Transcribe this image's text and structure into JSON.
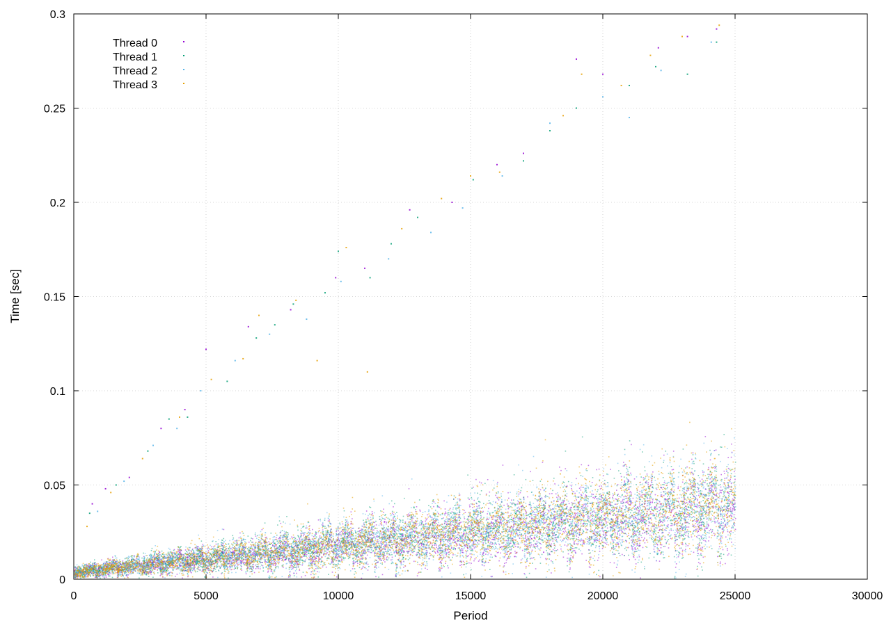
{
  "chart_data": {
    "type": "scatter",
    "xlabel": "Period",
    "ylabel": "Time [sec]",
    "xlim": [
      0,
      30000
    ],
    "ylim": [
      0,
      0.3
    ],
    "xticks": [
      {
        "value": 0,
        "label": "0"
      },
      {
        "value": 5000,
        "label": "5000"
      },
      {
        "value": 10000,
        "label": "10000"
      },
      {
        "value": 15000,
        "label": "15000"
      },
      {
        "value": 20000,
        "label": "20000"
      },
      {
        "value": 25000,
        "label": "25000"
      },
      {
        "value": 30000,
        "label": "30000"
      }
    ],
    "yticks": [
      {
        "value": 0,
        "label": "0"
      },
      {
        "value": 0.05,
        "label": "0.05"
      },
      {
        "value": 0.1,
        "label": "0.1"
      },
      {
        "value": 0.15,
        "label": "0.15"
      },
      {
        "value": 0.2,
        "label": "0.2"
      },
      {
        "value": 0.25,
        "label": "0.25"
      },
      {
        "value": 0.3,
        "label": "0.3"
      }
    ],
    "grid": true,
    "legend_position": "top-left",
    "series": [
      {
        "name": "Thread 0",
        "color": "#9400d3",
        "range": [
          0,
          25000
        ],
        "outliers": [
          [
            700,
            0.04
          ],
          [
            1200,
            0.048
          ],
          [
            2100,
            0.054
          ],
          [
            3300,
            0.08
          ],
          [
            4200,
            0.09
          ],
          [
            5000,
            0.122
          ],
          [
            6600,
            0.134
          ],
          [
            8200,
            0.143
          ],
          [
            9900,
            0.16
          ],
          [
            11000,
            0.165
          ],
          [
            12700,
            0.196
          ],
          [
            14300,
            0.2
          ],
          [
            16000,
            0.22
          ],
          [
            17000,
            0.226
          ],
          [
            19000,
            0.276
          ],
          [
            20000,
            0.268
          ],
          [
            22100,
            0.282
          ],
          [
            23200,
            0.288
          ],
          [
            24300,
            0.292
          ]
        ]
      },
      {
        "name": "Thread 1",
        "color": "#009e73",
        "range": [
          0,
          25000
        ],
        "outliers": [
          [
            600,
            0.035
          ],
          [
            1600,
            0.05
          ],
          [
            2800,
            0.068
          ],
          [
            3600,
            0.085
          ],
          [
            4300,
            0.086
          ],
          [
            5800,
            0.105
          ],
          [
            6900,
            0.128
          ],
          [
            7600,
            0.135
          ],
          [
            8300,
            0.146
          ],
          [
            9500,
            0.152
          ],
          [
            10000,
            0.174
          ],
          [
            11200,
            0.16
          ],
          [
            12000,
            0.178
          ],
          [
            13000,
            0.192
          ],
          [
            15100,
            0.212
          ],
          [
            17000,
            0.222
          ],
          [
            18000,
            0.238
          ],
          [
            19000,
            0.25
          ],
          [
            21000,
            0.262
          ],
          [
            22000,
            0.272
          ],
          [
            23200,
            0.268
          ],
          [
            24300,
            0.285
          ]
        ]
      },
      {
        "name": "Thread 2",
        "color": "#56b4e9",
        "range": [
          0,
          25000
        ],
        "outliers": [
          [
            900,
            0.036
          ],
          [
            1900,
            0.052
          ],
          [
            3000,
            0.071
          ],
          [
            3900,
            0.08
          ],
          [
            4800,
            0.1
          ],
          [
            6100,
            0.116
          ],
          [
            7400,
            0.13
          ],
          [
            8800,
            0.138
          ],
          [
            10100,
            0.158
          ],
          [
            11900,
            0.17
          ],
          [
            13500,
            0.184
          ],
          [
            14700,
            0.197
          ],
          [
            16200,
            0.214
          ],
          [
            18000,
            0.242
          ],
          [
            20000,
            0.256
          ],
          [
            21000,
            0.245
          ],
          [
            22200,
            0.27
          ],
          [
            24100,
            0.285
          ]
        ]
      },
      {
        "name": "Thread 3",
        "color": "#e69f00",
        "range": [
          0,
          25000
        ],
        "outliers": [
          [
            500,
            0.028
          ],
          [
            1400,
            0.046
          ],
          [
            2600,
            0.064
          ],
          [
            4000,
            0.086
          ],
          [
            5200,
            0.106
          ],
          [
            6400,
            0.117
          ],
          [
            7000,
            0.14
          ],
          [
            8400,
            0.148
          ],
          [
            9200,
            0.116
          ],
          [
            10300,
            0.176
          ],
          [
            11100,
            0.11
          ],
          [
            12400,
            0.186
          ],
          [
            13900,
            0.202
          ],
          [
            15000,
            0.214
          ],
          [
            16100,
            0.216
          ],
          [
            18500,
            0.246
          ],
          [
            19200,
            0.268
          ],
          [
            20700,
            0.262
          ],
          [
            21800,
            0.278
          ],
          [
            23000,
            0.288
          ],
          [
            24400,
            0.294
          ]
        ]
      }
    ]
  }
}
